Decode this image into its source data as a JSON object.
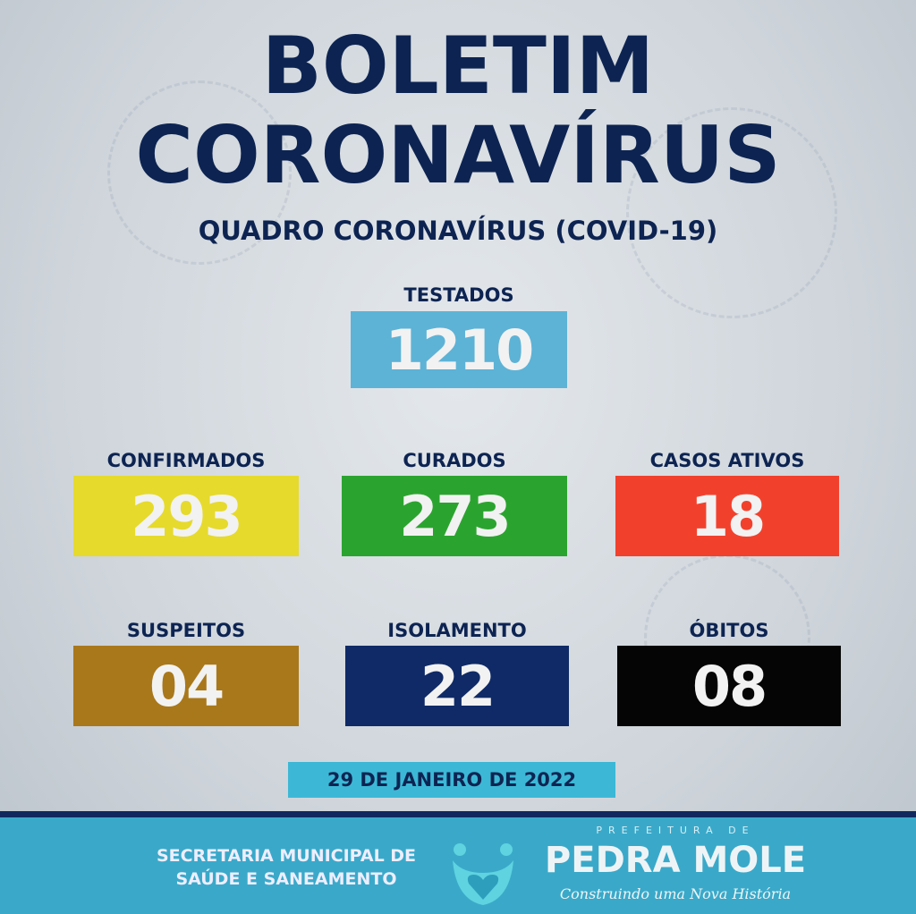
{
  "title_line1": "BOLETIM",
  "title_line2": "CORONAVÍRUS",
  "subtitle": "QUADRO CORONAVÍRUS (COVID-19)",
  "stats": {
    "testados": {
      "label": "TESTADOS",
      "value": "1210",
      "color": "#5db3d6"
    },
    "confirmados": {
      "label": "CONFIRMADOS",
      "value": "293",
      "color": "#e6da2c"
    },
    "curados": {
      "label": "CURADOS",
      "value": "273",
      "color": "#2ba42f"
    },
    "ativos": {
      "label": "CASOS ATIVOS",
      "value": "18",
      "color": "#f1412d"
    },
    "suspeitos": {
      "label": "SUSPEITOS",
      "value": "04",
      "color": "#a9781b"
    },
    "isolamento": {
      "label": "ISOLAMENTO",
      "value": "22",
      "color": "#0f2a66"
    },
    "obitos": {
      "label": "ÓBITOS",
      "value": "08",
      "color": "#050505"
    }
  },
  "date": "29 DE JANEIRO DE 2022",
  "footer": {
    "secretaria_line1": "SECRETARIA MUNICIPAL DE",
    "secretaria_line2": "SAÚDE E SANEAMENTO",
    "logo_top": "PREFEITURA DE",
    "logo_name": "PEDRA MOLE",
    "logo_slogan": "Construindo uma Nova História"
  }
}
